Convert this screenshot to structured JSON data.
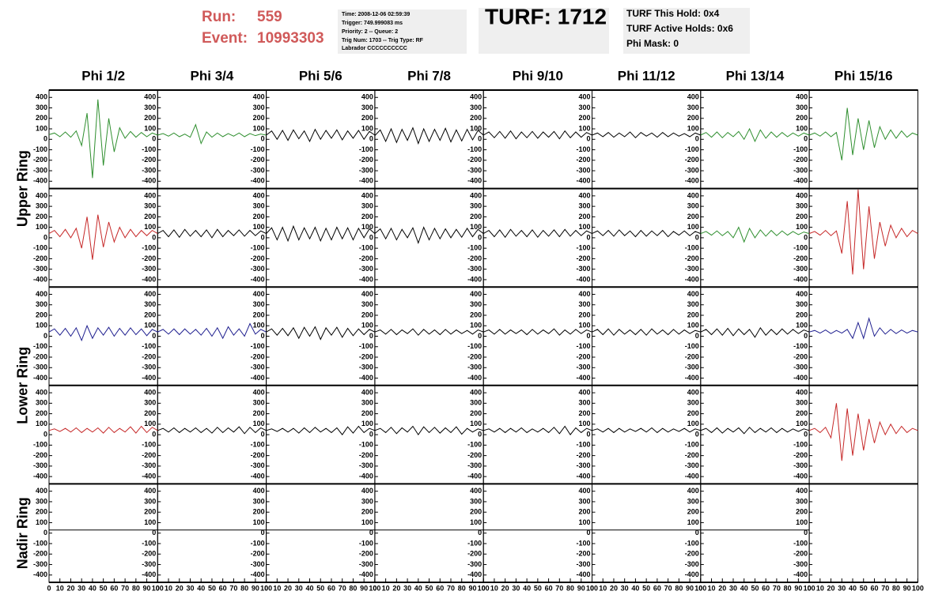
{
  "header": {
    "run_label": "Run:",
    "run": "559",
    "event_label": "Event:",
    "event": "10993303",
    "info": [
      "Time: 2008-12-06 02:59:39",
      "Trigger: 749.999083 ms",
      "Priority: 2 -- Queue: 2",
      "Trig Num: 1703 -- Trig Type: RF",
      "Labrador CCCCCCCCCC"
    ],
    "turf": "TURF: 1712",
    "turf_info": [
      "TURF This Hold: 0x4",
      "TURF Active Holds: 0x6",
      "Phi Mask: 0"
    ]
  },
  "chart_data": {
    "type": "line",
    "columns": [
      "Phi 1/2",
      "Phi 3/4",
      "Phi 5/6",
      "Phi 7/8",
      "Phi 9/10",
      "Phi 11/12",
      "Phi 13/14",
      "Phi 15/16"
    ],
    "rings": [
      "Upper Ring",
      "Lower Ring",
      "Nadir Ring"
    ],
    "x": [
      0,
      5,
      10,
      15,
      20,
      25,
      30,
      35,
      40,
      45,
      50,
      55,
      60,
      65,
      70,
      75,
      80,
      85,
      90,
      95,
      100
    ],
    "xlim": [
      0,
      100
    ],
    "xticks": [
      0,
      10,
      20,
      30,
      40,
      50,
      60,
      70,
      80,
      90,
      100
    ],
    "ylim": [
      -470,
      470
    ],
    "yticks": [
      -400,
      -300,
      -200,
      -100,
      0,
      100,
      200,
      300,
      400
    ],
    "series": [
      {
        "color": "#2f8f2f",
        "values": [
          45,
          60,
          25,
          70,
          20,
          80,
          -60,
          250,
          -370,
          380,
          -250,
          200,
          -120,
          110,
          10,
          75,
          20,
          65,
          25,
          60,
          40
        ]
      },
      {
        "color": "#2f8f2f",
        "values": [
          40,
          55,
          30,
          60,
          25,
          50,
          20,
          140,
          -40,
          70,
          20,
          60,
          25,
          55,
          30,
          60,
          25,
          55,
          35,
          50,
          40
        ]
      },
      {
        "color": "#000000",
        "values": [
          40,
          80,
          0,
          85,
          -10,
          90,
          5,
          80,
          -20,
          95,
          0,
          85,
          10,
          90,
          -5,
          80,
          10,
          85,
          0,
          75,
          40
        ]
      },
      {
        "color": "#000000",
        "values": [
          35,
          90,
          -20,
          100,
          -30,
          95,
          -10,
          110,
          -40,
          100,
          -20,
          95,
          -10,
          105,
          -25,
          90,
          -15,
          95,
          -5,
          85,
          40
        ]
      },
      {
        "color": "#000000",
        "values": [
          40,
          70,
          15,
          75,
          10,
          80,
          5,
          70,
          15,
          75,
          10,
          70,
          20,
          75,
          5,
          80,
          15,
          70,
          20,
          65,
          40
        ]
      },
      {
        "color": "#000000",
        "values": [
          40,
          60,
          25,
          65,
          20,
          60,
          25,
          70,
          15,
          65,
          30,
          60,
          20,
          65,
          25,
          60,
          30,
          55,
          25,
          60,
          40
        ]
      },
      {
        "color": "#2f8f2f",
        "values": [
          40,
          65,
          20,
          70,
          15,
          65,
          25,
          75,
          0,
          100,
          -20,
          90,
          10,
          70,
          20,
          65,
          25,
          60,
          30,
          60,
          40
        ]
      },
      {
        "color": "#2f8f2f",
        "values": [
          40,
          60,
          30,
          70,
          25,
          65,
          -200,
          300,
          -150,
          200,
          -100,
          180,
          -80,
          120,
          0,
          90,
          10,
          80,
          20,
          60,
          40
        ]
      },
      {
        "color": "#c62828",
        "values": [
          40,
          70,
          10,
          80,
          0,
          90,
          -100,
          200,
          -210,
          220,
          -90,
          150,
          -40,
          100,
          0,
          80,
          10,
          70,
          20,
          70,
          40
        ]
      },
      {
        "color": "#000000",
        "values": [
          40,
          70,
          10,
          75,
          5,
          80,
          15,
          70,
          10,
          75,
          0,
          80,
          10,
          70,
          20,
          75,
          15,
          70,
          20,
          65,
          40
        ]
      },
      {
        "color": "#000000",
        "values": [
          40,
          95,
          -20,
          100,
          -30,
          110,
          -20,
          95,
          -10,
          100,
          -30,
          90,
          -20,
          100,
          -10,
          95,
          -20,
          90,
          0,
          85,
          40
        ]
      },
      {
        "color": "#000000",
        "values": [
          40,
          85,
          -10,
          90,
          -20,
          80,
          0,
          95,
          -50,
          100,
          -20,
          90,
          -10,
          85,
          0,
          80,
          5,
          90,
          10,
          80,
          40
        ]
      },
      {
        "color": "#000000",
        "values": [
          40,
          70,
          10,
          75,
          5,
          80,
          15,
          70,
          10,
          75,
          5,
          70,
          15,
          75,
          10,
          80,
          15,
          70,
          20,
          65,
          40
        ]
      },
      {
        "color": "#000000",
        "values": [
          40,
          65,
          20,
          70,
          15,
          75,
          20,
          65,
          10,
          70,
          15,
          65,
          20,
          70,
          10,
          60,
          25,
          65,
          20,
          60,
          40
        ]
      },
      {
        "color": "#2f8f2f",
        "values": [
          40,
          60,
          25,
          65,
          20,
          60,
          0,
          100,
          -40,
          90,
          0,
          75,
          15,
          70,
          20,
          65,
          25,
          60,
          30,
          55,
          40
        ]
      },
      {
        "color": "#c62828",
        "values": [
          40,
          60,
          25,
          70,
          20,
          65,
          -150,
          350,
          -350,
          460,
          -300,
          300,
          -200,
          150,
          -80,
          120,
          0,
          90,
          10,
          70,
          40
        ]
      },
      {
        "color": "#1f1f8f",
        "values": [
          40,
          70,
          10,
          75,
          0,
          80,
          -40,
          100,
          -20,
          80,
          10,
          85,
          0,
          75,
          10,
          80,
          15,
          70,
          5,
          65,
          40
        ]
      },
      {
        "color": "#1f1f8f",
        "values": [
          40,
          65,
          20,
          70,
          15,
          70,
          20,
          65,
          10,
          75,
          0,
          80,
          -20,
          90,
          10,
          70,
          0,
          120,
          20,
          65,
          40
        ]
      },
      {
        "color": "#000000",
        "values": [
          40,
          70,
          10,
          75,
          5,
          80,
          -20,
          85,
          0,
          90,
          -30,
          80,
          10,
          85,
          -10,
          75,
          5,
          70,
          15,
          65,
          40
        ]
      },
      {
        "color": "#000000",
        "values": [
          40,
          60,
          20,
          65,
          15,
          60,
          25,
          70,
          10,
          65,
          20,
          60,
          15,
          65,
          20,
          60,
          25,
          55,
          20,
          60,
          40
        ]
      },
      {
        "color": "#000000",
        "values": [
          40,
          60,
          20,
          65,
          20,
          60,
          25,
          60,
          15,
          65,
          20,
          60,
          25,
          70,
          10,
          60,
          20,
          65,
          25,
          60,
          40
        ]
      },
      {
        "color": "#000000",
        "values": [
          40,
          65,
          15,
          70,
          10,
          65,
          20,
          60,
          15,
          65,
          10,
          70,
          20,
          60,
          15,
          65,
          20,
          60,
          25,
          55,
          40
        ]
      },
      {
        "color": "#000000",
        "values": [
          40,
          65,
          15,
          70,
          10,
          75,
          5,
          70,
          15,
          65,
          -10,
          80,
          10,
          65,
          15,
          70,
          20,
          65,
          25,
          60,
          40
        ]
      },
      {
        "color": "#1f1f8f",
        "values": [
          40,
          55,
          30,
          60,
          25,
          55,
          30,
          65,
          -20,
          130,
          -20,
          170,
          0,
          80,
          20,
          65,
          25,
          60,
          30,
          55,
          40
        ]
      },
      {
        "color": "#c62828",
        "values": [
          40,
          55,
          30,
          60,
          25,
          65,
          20,
          60,
          25,
          65,
          15,
          70,
          20,
          60,
          25,
          75,
          15,
          80,
          20,
          70,
          40
        ]
      },
      {
        "color": "#000000",
        "values": [
          40,
          60,
          25,
          65,
          20,
          60,
          25,
          65,
          20,
          60,
          15,
          70,
          20,
          65,
          25,
          75,
          10,
          70,
          20,
          65,
          40
        ]
      },
      {
        "color": "#000000",
        "values": [
          40,
          55,
          30,
          60,
          25,
          60,
          15,
          65,
          20,
          70,
          25,
          60,
          20,
          65,
          0,
          75,
          15,
          80,
          20,
          60,
          40
        ]
      },
      {
        "color": "#000000",
        "values": [
          40,
          60,
          20,
          70,
          10,
          65,
          25,
          80,
          0,
          75,
          20,
          70,
          15,
          65,
          20,
          75,
          5,
          60,
          25,
          55,
          40
        ]
      },
      {
        "color": "#000000",
        "values": [
          40,
          55,
          25,
          60,
          20,
          60,
          25,
          65,
          20,
          55,
          25,
          60,
          20,
          70,
          10,
          80,
          0,
          65,
          20,
          60,
          40
        ]
      },
      {
        "color": "#000000",
        "values": [
          40,
          55,
          25,
          60,
          20,
          60,
          25,
          55,
          30,
          60,
          25,
          65,
          20,
          60,
          25,
          55,
          30,
          60,
          25,
          55,
          40
        ]
      },
      {
        "color": "#000000",
        "values": [
          40,
          60,
          20,
          65,
          15,
          60,
          25,
          65,
          10,
          70,
          20,
          60,
          25,
          65,
          20,
          60,
          25,
          55,
          30,
          55,
          40
        ]
      },
      {
        "color": "#c62828",
        "values": [
          40,
          60,
          20,
          70,
          -30,
          300,
          -250,
          250,
          -200,
          200,
          -150,
          150,
          -80,
          120,
          0,
          100,
          10,
          80,
          20,
          60,
          40
        ]
      },
      {
        "color": "#000000",
        "values": [
          30,
          30,
          30,
          30,
          30,
          30,
          30,
          30,
          30,
          30,
          30,
          30,
          30,
          30,
          30,
          30,
          30,
          30,
          30,
          30,
          30
        ]
      },
      {
        "color": "#000000",
        "values": [
          30,
          30,
          30,
          30,
          30,
          30,
          30,
          30,
          30,
          30,
          30,
          30,
          30,
          30,
          30,
          30,
          30,
          30,
          30,
          30,
          30
        ]
      },
      {
        "color": "#000000",
        "values": [
          30,
          30,
          30,
          30,
          30,
          30,
          30,
          30,
          30,
          30,
          30,
          30,
          30,
          30,
          30,
          30,
          30,
          30,
          30,
          30,
          30
        ]
      },
      {
        "color": "#000000",
        "values": [
          30,
          30,
          30,
          30,
          30,
          30,
          30,
          30,
          30,
          30,
          30,
          30,
          30,
          30,
          30,
          30,
          30,
          30,
          30,
          30,
          30
        ]
      },
      {
        "color": "#000000",
        "values": [
          30,
          30,
          30,
          30,
          30,
          30,
          30,
          30,
          30,
          30,
          30,
          30,
          30,
          30,
          30,
          30,
          30,
          30,
          30,
          30,
          30
        ]
      },
      {
        "color": "#000000",
        "values": [
          30,
          30,
          30,
          30,
          30,
          30,
          30,
          30,
          30,
          30,
          30,
          30,
          30,
          30,
          30,
          30,
          30,
          30,
          30,
          30,
          30
        ]
      },
      {
        "color": "#000000",
        "values": [
          30,
          30,
          30,
          30,
          30,
          30,
          30,
          30,
          30,
          30,
          30,
          30,
          30,
          30,
          30,
          30,
          30,
          30,
          30,
          30,
          30
        ]
      }
    ]
  }
}
